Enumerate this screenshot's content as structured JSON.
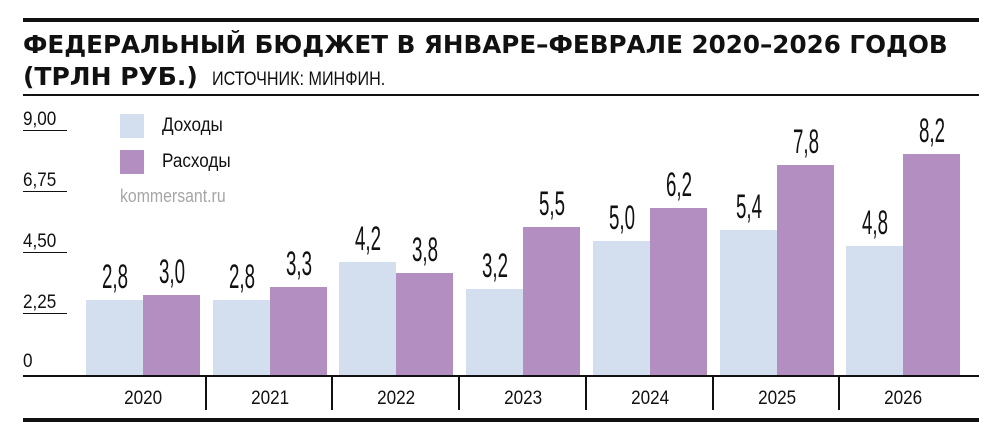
{
  "header": {
    "title": "ФЕДЕРАЛЬНЫЙ БЮДЖЕТ В ЯНВАРЕ–ФЕВРАЛЕ 2020–2026 ГОДОВ",
    "unit": "(ТРЛН РУБ.)",
    "source": "ИСТОЧНИК: МИНФИН."
  },
  "legend": {
    "items": [
      {
        "label": "Доходы",
        "color": "#d3dfee"
      },
      {
        "label": "Расходы",
        "color": "#b38fc1"
      }
    ],
    "watermark": "kommersant.ru"
  },
  "yaxis": {
    "ticks": [
      "9,00",
      "6,75",
      "4,50",
      "2,25",
      "0"
    ]
  },
  "bars": {
    "labels": {
      "inc": [
        "2,8",
        "2,8",
        "4,2",
        "3,2",
        "5,0",
        "5,4",
        "4,8"
      ],
      "exp": [
        "3,0",
        "3,3",
        "3,8",
        "5,5",
        "6,2",
        "7,8",
        "8,2"
      ]
    }
  },
  "xaxis": {
    "labels": [
      "2020",
      "2021",
      "2022",
      "2023",
      "2024",
      "2025",
      "2026"
    ]
  },
  "chart_data": {
    "type": "bar",
    "title": "Федеральный бюджет в январе–феврале 2020–2026 годов (трлн руб.)",
    "subtitle": "Источник: Минфин.",
    "categories": [
      "2020",
      "2021",
      "2022",
      "2023",
      "2024",
      "2025",
      "2026"
    ],
    "series": [
      {
        "name": "Доходы",
        "color": "#d3dfee",
        "values": [
          2.8,
          2.8,
          4.2,
          3.2,
          5.0,
          5.4,
          4.8
        ]
      },
      {
        "name": "Расходы",
        "color": "#b38fc1",
        "values": [
          3.0,
          3.3,
          3.8,
          5.5,
          6.2,
          7.8,
          8.2
        ]
      }
    ],
    "xlabel": "",
    "ylabel": "трлн руб.",
    "ylim": [
      0,
      9
    ],
    "yticks": [
      0,
      2.25,
      4.5,
      6.75,
      9.0
    ],
    "grid": false,
    "legend_position": "top-left",
    "annotations": [
      "kommersant.ru"
    ]
  }
}
